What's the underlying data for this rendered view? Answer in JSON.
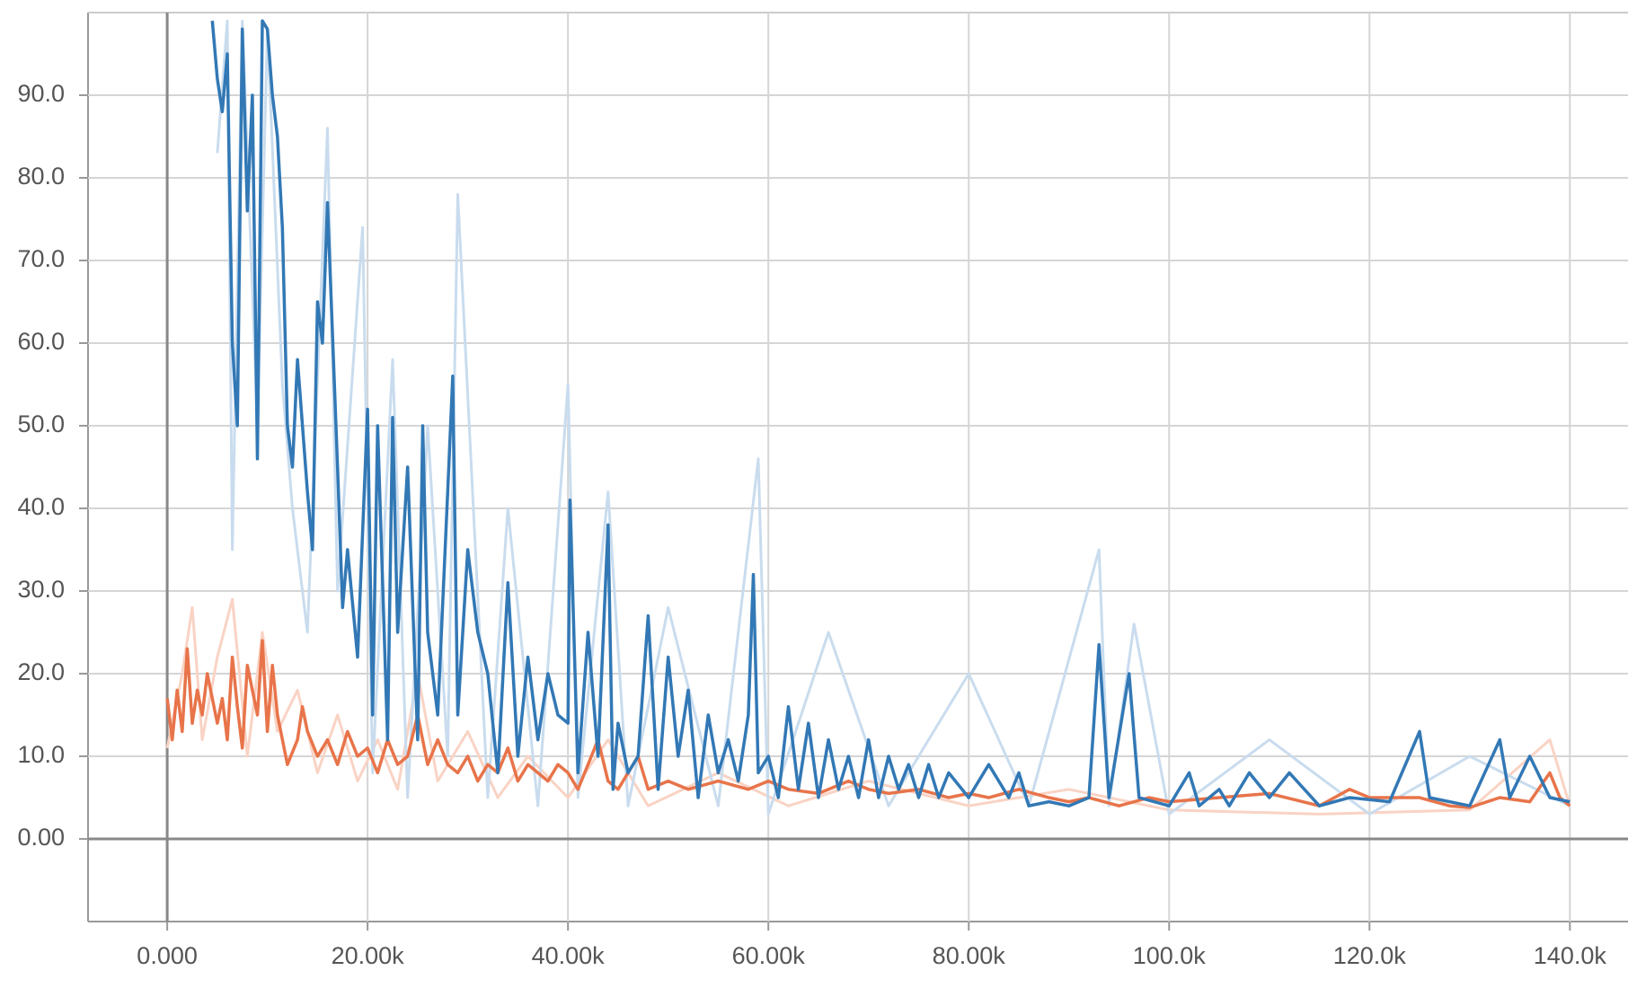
{
  "chart_data": {
    "type": "line",
    "xlim": [
      -7900,
      145800
    ],
    "ylim": [
      -10,
      100
    ],
    "xticks": [
      {
        "value": 0,
        "label": "0.000"
      },
      {
        "value": 20000,
        "label": "20.00k"
      },
      {
        "value": 40000,
        "label": "40.00k"
      },
      {
        "value": 60000,
        "label": "60.00k"
      },
      {
        "value": 80000,
        "label": "80.00k"
      },
      {
        "value": 100000,
        "label": "100.0k"
      },
      {
        "value": 120000,
        "label": "120.0k"
      },
      {
        "value": 140000,
        "label": "140.0k"
      }
    ],
    "yticks": [
      {
        "value": 0,
        "label": "0.00"
      },
      {
        "value": 10,
        "label": "10.0"
      },
      {
        "value": 20,
        "label": "20.0"
      },
      {
        "value": 30,
        "label": "30.0"
      },
      {
        "value": 40,
        "label": "40.0"
      },
      {
        "value": 50,
        "label": "50.0"
      },
      {
        "value": 60,
        "label": "60.0"
      },
      {
        "value": 70,
        "label": "70.0"
      },
      {
        "value": 80,
        "label": "80.0"
      },
      {
        "value": 90,
        "label": "90.0"
      }
    ],
    "grid": true,
    "series": [
      {
        "color": "#f9d3c4",
        "width": 3,
        "x": [
          0,
          1500,
          2500,
          3500,
          5000,
          6500,
          8000,
          9500,
          11000,
          13000,
          15000,
          17000,
          19000,
          21000,
          23000,
          25000,
          27000,
          30000,
          33000,
          36000,
          40000,
          44000,
          48000,
          55000,
          62000,
          70000,
          80000,
          90000,
          100000,
          115000,
          130000,
          138000,
          140000
        ],
        "values": [
          11,
          20,
          28,
          12,
          22,
          29,
          10,
          25,
          13,
          18,
          8,
          15,
          7,
          12,
          6,
          20,
          7,
          13,
          5,
          10,
          5,
          12,
          4,
          8,
          4,
          7,
          4,
          6,
          3.5,
          3,
          3.5,
          12,
          4
        ]
      },
      {
        "color": "#c9dcee",
        "width": 3,
        "x": [
          5000,
          6000,
          6500,
          7500,
          9000,
          10000,
          11500,
          12500,
          14000,
          16000,
          17000,
          19500,
          20500,
          22500,
          24000,
          26000,
          28000,
          29000,
          32000,
          34000,
          37000,
          40000,
          41000,
          44000,
          46000,
          50000,
          55000,
          59000,
          60000,
          66000,
          72000,
          80000,
          86000,
          93000,
          94000,
          96500,
          100000,
          110000,
          120000,
          130000,
          140000
        ],
        "values": [
          83,
          99,
          35,
          99,
          50,
          98,
          55,
          40,
          25,
          86,
          30,
          74,
          8,
          58,
          5,
          50,
          10,
          78,
          5,
          40,
          4,
          55,
          5,
          42,
          4,
          28,
          4,
          46,
          3,
          25,
          4,
          20,
          4,
          35,
          4,
          26,
          3,
          12,
          3,
          10,
          4
        ]
      },
      {
        "color": "#e8744a",
        "width": 3.5,
        "x": [
          0,
          500,
          1000,
          1500,
          2000,
          2500,
          3000,
          3500,
          4000,
          5000,
          5500,
          6000,
          6500,
          7000,
          7500,
          8000,
          9000,
          9500,
          10000,
          10500,
          11000,
          12000,
          13000,
          13500,
          14000,
          15000,
          16000,
          17000,
          18000,
          19000,
          20000,
          21000,
          22000,
          23000,
          24000,
          25000,
          26000,
          27000,
          28000,
          29000,
          30000,
          31000,
          32000,
          33000,
          34000,
          35000,
          36000,
          37000,
          38000,
          39000,
          40000,
          41000,
          42000,
          43000,
          44000,
          45000,
          46000,
          47000,
          48000,
          50000,
          52000,
          55000,
          58000,
          60000,
          62000,
          65000,
          68000,
          70000,
          72000,
          75000,
          78000,
          80000,
          82000,
          85000,
          88000,
          90000,
          92000,
          95000,
          98000,
          100000,
          105000,
          110000,
          115000,
          118000,
          120000,
          125000,
          128000,
          130000,
          133000,
          136000,
          138000,
          139000,
          140000
        ],
        "values": [
          17,
          12,
          18,
          13,
          23,
          14,
          18,
          15,
          20,
          14,
          17,
          12,
          22,
          16,
          11,
          21,
          15,
          24,
          13,
          21,
          15,
          9,
          12,
          16,
          13,
          10,
          12,
          9,
          13,
          10,
          11,
          8,
          12,
          9,
          10,
          15,
          9,
          12,
          9,
          8,
          10,
          7,
          9,
          8,
          11,
          7,
          9,
          8,
          7,
          9,
          8,
          6,
          9,
          12,
          7,
          6,
          8,
          10,
          6,
          7,
          6,
          7,
          6,
          7,
          6,
          5.5,
          7,
          6,
          5.5,
          6,
          5,
          5.5,
          5,
          6,
          5,
          4.5,
          5,
          4,
          5,
          4.5,
          5,
          5.5,
          4,
          6,
          5,
          5,
          4,
          3.8,
          5,
          4.5,
          8,
          5,
          4
        ]
      },
      {
        "color": "#3278b5",
        "width": 3.5,
        "x": [
          4500,
          5000,
          5500,
          6000,
          6500,
          7000,
          7500,
          8000,
          8500,
          9000,
          9500,
          10000,
          10500,
          11000,
          11500,
          12000,
          12500,
          13000,
          14000,
          14500,
          15000,
          15500,
          16000,
          17000,
          17500,
          18000,
          19000,
          20000,
          20500,
          21000,
          22000,
          22500,
          23000,
          24000,
          25000,
          25500,
          26000,
          27000,
          28000,
          28500,
          29000,
          30000,
          31000,
          32000,
          33000,
          34000,
          35000,
          36000,
          37000,
          38000,
          39000,
          40000,
          40200,
          41000,
          42000,
          43000,
          44000,
          44500,
          45000,
          46000,
          47000,
          48000,
          49000,
          50000,
          51000,
          52000,
          53000,
          54000,
          55000,
          56000,
          57000,
          58000,
          58500,
          59000,
          60000,
          61000,
          62000,
          63000,
          64000,
          65000,
          66000,
          67000,
          68000,
          69000,
          70000,
          71000,
          72000,
          73000,
          74000,
          75000,
          76000,
          77000,
          78000,
          80000,
          82000,
          84000,
          85000,
          86000,
          88000,
          90000,
          92000,
          93000,
          94000,
          96000,
          97000,
          100000,
          102000,
          103000,
          105000,
          106000,
          108000,
          110000,
          112000,
          115000,
          118000,
          122000,
          125000,
          126000,
          130000,
          133000,
          134000,
          136000,
          138000,
          140000
        ],
        "values": [
          99,
          92,
          88,
          95,
          60,
          50,
          98,
          76,
          90,
          46,
          99,
          98,
          90,
          85,
          74,
          50,
          45,
          58,
          42,
          35,
          65,
          60,
          77,
          45,
          28,
          35,
          22,
          52,
          15,
          50,
          12,
          51,
          25,
          45,
          12,
          50,
          25,
          15,
          42,
          56,
          15,
          35,
          25,
          20,
          8,
          31,
          10,
          22,
          12,
          20,
          15,
          14,
          41,
          8,
          25,
          10,
          38,
          6,
          14,
          8,
          10,
          27,
          6,
          22,
          10,
          18,
          5,
          15,
          8,
          12,
          7,
          15,
          32,
          8,
          10,
          5,
          16,
          6,
          14,
          5,
          12,
          6,
          10,
          5,
          12,
          5,
          10,
          6,
          9,
          5,
          9,
          5,
          8,
          5,
          9,
          5,
          8,
          4,
          4.5,
          4,
          5,
          23.5,
          5,
          20,
          5,
          4,
          8,
          4,
          6,
          4,
          8,
          5,
          8,
          4,
          5,
          4.5,
          13,
          5,
          4,
          12,
          5,
          10,
          5,
          4.5
        ]
      }
    ]
  }
}
